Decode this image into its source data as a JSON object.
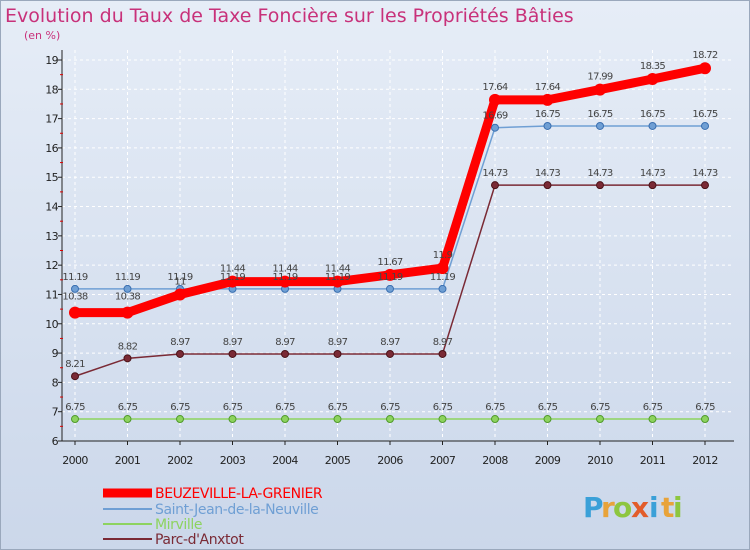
{
  "chart_data": {
    "type": "line",
    "title": "Evolution du Taux de Taxe Foncière sur les Propriétés Bâties",
    "unit_label": "(en %)",
    "x": [
      "2000",
      "2001",
      "2002",
      "2003",
      "2004",
      "2005",
      "2006",
      "2007",
      "2008",
      "2009",
      "2010",
      "2011",
      "2012"
    ],
    "ylim": [
      6,
      19
    ],
    "yticks": [
      6,
      7,
      8,
      9,
      10,
      11,
      12,
      13,
      14,
      15,
      16,
      17,
      18,
      19
    ],
    "series": [
      {
        "name": "BEUZEVILLE-LA-GRENIER",
        "color": "#ff0000",
        "values": [
          10.38,
          10.38,
          11,
          11.44,
          11.44,
          11.44,
          11.67,
          11.9,
          17.64,
          17.64,
          17.99,
          18.35,
          18.72
        ],
        "labels": [
          "10.38",
          "10.38",
          "11",
          "11.44",
          "11.44",
          "11.44",
          "11.67",
          "11.9",
          "17.64",
          "17.64",
          "17.99",
          "18.35",
          "18.72"
        ]
      },
      {
        "name": "Saint-Jean-de-la-Neuville",
        "color": "#6f9fd4",
        "values": [
          11.19,
          11.19,
          11.19,
          11.19,
          11.19,
          11.19,
          11.19,
          11.19,
          16.69,
          16.75,
          16.75,
          16.75,
          16.75
        ],
        "labels": [
          "11.19",
          "11.19",
          "11.19",
          "11.19",
          "11.19",
          "11.19",
          "11.19",
          "11.19",
          "16.69",
          "16.75",
          "16.75",
          "16.75",
          "16.75"
        ]
      },
      {
        "name": "Mirville",
        "color": "#8dd35f",
        "values": [
          6.75,
          6.75,
          6.75,
          6.75,
          6.75,
          6.75,
          6.75,
          6.75,
          6.75,
          6.75,
          6.75,
          6.75,
          6.75
        ],
        "labels": [
          "6.75",
          "6.75",
          "6.75",
          "6.75",
          "6.75",
          "6.75",
          "6.75",
          "6.75",
          "6.75",
          "6.75",
          "6.75",
          "6.75",
          "6.75"
        ]
      },
      {
        "name": "Parc-d'Anxtot",
        "color": "#7a2a35",
        "values": [
          8.21,
          8.82,
          8.97,
          8.97,
          8.97,
          8.97,
          8.97,
          8.97,
          14.73,
          14.73,
          14.73,
          14.73,
          14.73
        ],
        "labels": [
          "8.21",
          "8.82",
          "8.97",
          "8.97",
          "8.97",
          "8.97",
          "8.97",
          "8.97",
          "14.73",
          "14.73",
          "14.73",
          "14.73",
          "14.73"
        ]
      }
    ]
  },
  "logo": {
    "letters": [
      "P",
      "r",
      "o",
      "x",
      "i",
      "t",
      "i"
    ],
    "colors": [
      "#3aa0d8",
      "#e8a33a",
      "#8dc63f",
      "#e25c2a",
      "#3aa0d8",
      "#e8a33a",
      "#8dc63f"
    ]
  }
}
